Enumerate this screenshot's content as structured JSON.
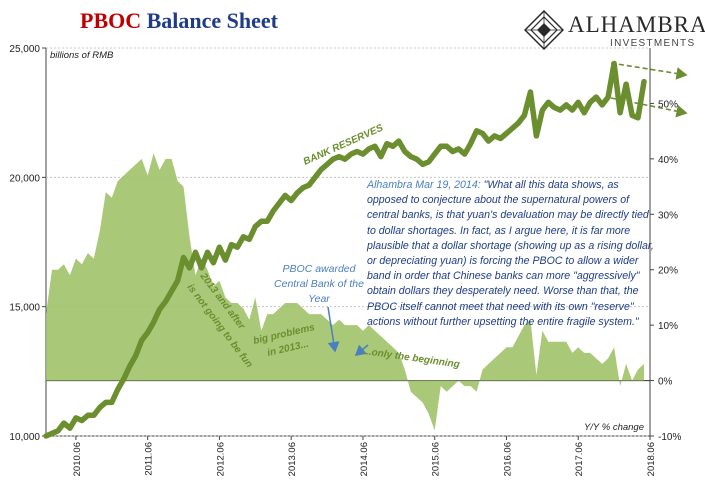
{
  "title": {
    "accent": "PBOC",
    "rest": " Balance Sheet"
  },
  "logo": {
    "name": "ALHAMBRA",
    "sub": "INVESTMENTS"
  },
  "quote": {
    "lead": "Alhambra Mar 19, 2014:",
    "body": " \"What all this data shows, as opposed to conjecture about the supernatural powers of central banks, is that yuan's devaluation may be directly tied to dollar shortages. In fact, as I argue here, it is far more plausible that a dollar shortage (showing up as a rising dollar, or depreciating yuan) is forcing the PBOC to allow a wider band in order that Chinese banks can more \"aggressively\" obtain dollars they desperately need. Worse than that, the PBOC itself cannot meet that need with its own \"reserve\" actions without further upsetting the entire fragile system.\""
  },
  "colors": {
    "reserves": "#6b8e2f",
    "yoy": "#9dc165",
    "title_accent": "#c00000",
    "quote": "#1f3c88",
    "arrow": "#4a7fc0"
  },
  "chart_data": {
    "type": "area",
    "ylabel": "billions of RMB",
    "ylabel_right": "Y/Y % change",
    "ylim": [
      10000,
      25000
    ],
    "ylim_right": [
      -10,
      60
    ],
    "yticks_left": [
      "10,000",
      "15,000",
      "20,000",
      "25,000"
    ],
    "yticks_right": [
      "-10%",
      "0%",
      "10%",
      "20%",
      "30%",
      "40%",
      "50%"
    ],
    "x_tick_labels": [
      "2010.06",
      "2011.06",
      "2012.06",
      "2013.06",
      "2014.06",
      "2015.06",
      "2016.06",
      "2017.06",
      "2018.06"
    ],
    "x_start": "2010-01",
    "x_end": "2018-06",
    "series": [
      {
        "axis": "left",
        "style": "line",
        "points": [
          [
            "2010-01",
            10000
          ],
          [
            "2010-03",
            10200
          ],
          [
            "2010-04",
            10500
          ],
          [
            "2010-05",
            10300
          ],
          [
            "2010-06",
            10700
          ],
          [
            "2010-07",
            10600
          ],
          [
            "2010-08",
            10800
          ],
          [
            "2010-09",
            10800
          ],
          [
            "2010-10",
            11100
          ],
          [
            "2010-11",
            11300
          ],
          [
            "2010-12",
            11300
          ],
          [
            "2011-01",
            11800
          ],
          [
            "2011-02",
            12200
          ],
          [
            "2011-03",
            12700
          ],
          [
            "2011-04",
            13100
          ],
          [
            "2011-05",
            13700
          ],
          [
            "2011-06",
            14000
          ],
          [
            "2011-07",
            14400
          ],
          [
            "2011-08",
            14900
          ],
          [
            "2011-09",
            15200
          ],
          [
            "2011-10",
            15600
          ],
          [
            "2011-11",
            16000
          ],
          [
            "2011-12",
            16900
          ],
          [
            "2012-01",
            16500
          ],
          [
            "2012-02",
            17100
          ],
          [
            "2012-03",
            16500
          ],
          [
            "2012-04",
            17100
          ],
          [
            "2012-05",
            16700
          ],
          [
            "2012-06",
            17300
          ],
          [
            "2012-07",
            16800
          ],
          [
            "2012-08",
            17400
          ],
          [
            "2012-09",
            17300
          ],
          [
            "2012-10",
            17700
          ],
          [
            "2012-11",
            17600
          ],
          [
            "2012-12",
            18100
          ],
          [
            "2013-01",
            18300
          ],
          [
            "2013-02",
            18300
          ],
          [
            "2013-03",
            18700
          ],
          [
            "2013-04",
            19000
          ],
          [
            "2013-05",
            19300
          ],
          [
            "2013-06",
            19100
          ],
          [
            "2013-07",
            19400
          ],
          [
            "2013-08",
            19600
          ],
          [
            "2013-09",
            19700
          ],
          [
            "2013-10",
            20000
          ],
          [
            "2013-11",
            20300
          ],
          [
            "2013-12",
            20500
          ],
          [
            "2014-01",
            20700
          ],
          [
            "2014-02",
            20800
          ],
          [
            "2014-03",
            20700
          ],
          [
            "2014-04",
            20900
          ],
          [
            "2014-05",
            21000
          ],
          [
            "2014-06",
            20900
          ],
          [
            "2014-07",
            21100
          ],
          [
            "2014-08",
            21200
          ],
          [
            "2014-09",
            20800
          ],
          [
            "2014-10",
            21300
          ],
          [
            "2014-11",
            21200
          ],
          [
            "2014-12",
            21400
          ],
          [
            "2015-01",
            21000
          ],
          [
            "2015-02",
            20800
          ],
          [
            "2015-03",
            20700
          ],
          [
            "2015-04",
            20500
          ],
          [
            "2015-05",
            20600
          ],
          [
            "2015-06",
            20900
          ],
          [
            "2015-07",
            21200
          ],
          [
            "2015-08",
            21200
          ],
          [
            "2015-09",
            21000
          ],
          [
            "2015-10",
            21100
          ],
          [
            "2015-11",
            20900
          ],
          [
            "2015-12",
            21300
          ],
          [
            "2016-01",
            21800
          ],
          [
            "2016-02",
            21700
          ],
          [
            "2016-03",
            21400
          ],
          [
            "2016-04",
            21600
          ],
          [
            "2016-05",
            21500
          ],
          [
            "2016-06",
            21700
          ],
          [
            "2016-07",
            21900
          ],
          [
            "2016-08",
            22100
          ],
          [
            "2016-09",
            22400
          ],
          [
            "2016-10",
            23300
          ],
          [
            "2016-11",
            21600
          ],
          [
            "2016-12",
            22600
          ],
          [
            "2017-01",
            22900
          ],
          [
            "2017-02",
            22700
          ],
          [
            "2017-03",
            22600
          ],
          [
            "2017-04",
            22800
          ],
          [
            "2017-05",
            22600
          ],
          [
            "2017-06",
            22900
          ],
          [
            "2017-07",
            22500
          ],
          [
            "2017-08",
            22900
          ],
          [
            "2017-09",
            23100
          ],
          [
            "2017-10",
            22800
          ],
          [
            "2017-11",
            23100
          ],
          [
            "2017-12",
            24400
          ],
          [
            "2018-01",
            22500
          ],
          [
            "2018-02",
            23600
          ],
          [
            "2018-03",
            22400
          ],
          [
            "2018-04",
            22300
          ],
          [
            "2018-05",
            23700
          ]
        ]
      },
      {
        "axis": "right",
        "style": "area",
        "points": [
          [
            "2010-01",
            12
          ],
          [
            "2010-02",
            20
          ],
          [
            "2010-03",
            20
          ],
          [
            "2010-04",
            21
          ],
          [
            "2010-05",
            19
          ],
          [
            "2010-06",
            22
          ],
          [
            "2010-07",
            21
          ],
          [
            "2010-08",
            23
          ],
          [
            "2010-09",
            22
          ],
          [
            "2010-10",
            27
          ],
          [
            "2010-11",
            34
          ],
          [
            "2010-12",
            33
          ],
          [
            "2011-01",
            36
          ],
          [
            "2011-02",
            37
          ],
          [
            "2011-03",
            38
          ],
          [
            "2011-04",
            39
          ],
          [
            "2011-05",
            40
          ],
          [
            "2011-06",
            37
          ],
          [
            "2011-07",
            41
          ],
          [
            "2011-08",
            38
          ],
          [
            "2011-09",
            40
          ],
          [
            "2011-10",
            40
          ],
          [
            "2011-11",
            36
          ],
          [
            "2011-12",
            35
          ],
          [
            "2012-01",
            26
          ],
          [
            "2012-02",
            19
          ],
          [
            "2012-03",
            22
          ],
          [
            "2012-04",
            20
          ],
          [
            "2012-05",
            17
          ],
          [
            "2012-06",
            18
          ],
          [
            "2012-07",
            15
          ],
          [
            "2012-08",
            14
          ],
          [
            "2012-09",
            14
          ],
          [
            "2012-10",
            13
          ],
          [
            "2012-11",
            11
          ],
          [
            "2012-12",
            15
          ],
          [
            "2013-01",
            9
          ],
          [
            "2013-02",
            12
          ],
          [
            "2013-03",
            12
          ],
          [
            "2013-04",
            13
          ],
          [
            "2013-05",
            14
          ],
          [
            "2013-06",
            14
          ],
          [
            "2013-07",
            14
          ],
          [
            "2013-08",
            13
          ],
          [
            "2013-09",
            12
          ],
          [
            "2013-10",
            12
          ],
          [
            "2013-11",
            12
          ],
          [
            "2013-12",
            11
          ],
          [
            "2014-01",
            10
          ],
          [
            "2014-02",
            11
          ],
          [
            "2014-03",
            10
          ],
          [
            "2014-04",
            10
          ],
          [
            "2014-05",
            10
          ],
          [
            "2014-06",
            9
          ],
          [
            "2014-07",
            10
          ],
          [
            "2014-08",
            9
          ],
          [
            "2014-09",
            8
          ],
          [
            "2014-10",
            7
          ],
          [
            "2014-11",
            6
          ],
          [
            "2014-12",
            5
          ],
          [
            "2015-01",
            2
          ],
          [
            "2015-02",
            -2
          ],
          [
            "2015-03",
            -3
          ],
          [
            "2015-04",
            -4
          ],
          [
            "2015-05",
            -6
          ],
          [
            "2015-06",
            -9
          ],
          [
            "2015-07",
            -1
          ],
          [
            "2015-08",
            -2
          ],
          [
            "2015-09",
            -1
          ],
          [
            "2015-10",
            0
          ],
          [
            "2015-11",
            -1
          ],
          [
            "2015-12",
            -1
          ],
          [
            "2016-01",
            -2
          ],
          [
            "2016-02",
            2
          ],
          [
            "2016-03",
            3
          ],
          [
            "2016-04",
            4
          ],
          [
            "2016-05",
            5
          ],
          [
            "2016-06",
            6
          ],
          [
            "2016-07",
            6
          ],
          [
            "2016-08",
            8
          ],
          [
            "2016-09",
            10
          ],
          [
            "2016-10",
            11
          ],
          [
            "2016-11",
            1
          ],
          [
            "2016-12",
            9
          ],
          [
            "2017-01",
            7
          ],
          [
            "2017-02",
            7
          ],
          [
            "2017-03",
            7
          ],
          [
            "2017-04",
            7
          ],
          [
            "2017-05",
            5
          ],
          [
            "2017-06",
            6
          ],
          [
            "2017-07",
            5
          ],
          [
            "2017-08",
            5
          ],
          [
            "2017-09",
            4
          ],
          [
            "2017-10",
            3
          ],
          [
            "2017-11",
            4
          ],
          [
            "2017-12",
            6
          ],
          [
            "2018-01",
            -1
          ],
          [
            "2018-02",
            3
          ],
          [
            "2018-03",
            0
          ],
          [
            "2018-04",
            2
          ],
          [
            "2018-05",
            3
          ]
        ]
      }
    ],
    "annotations": [
      {
        "text": "BANK RESERVES"
      },
      {
        "text": "2013 and after"
      },
      {
        "text": "is not going to be fun"
      },
      {
        "text": "big problems"
      },
      {
        "text": "in 2013..."
      },
      {
        "text": "PBOC awarded"
      },
      {
        "text": "Central Bank of the"
      },
      {
        "text": "Year"
      },
      {
        "text": "...only the beginning"
      }
    ]
  }
}
